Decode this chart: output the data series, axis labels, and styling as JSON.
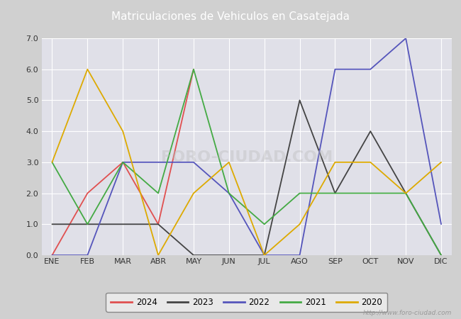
{
  "title": "Matriculaciones de Vehiculos en Casatejada",
  "months": [
    "ENE",
    "FEB",
    "MAR",
    "ABR",
    "MAY",
    "JUN",
    "JUL",
    "AGO",
    "SEP",
    "OCT",
    "NOV",
    "DIC"
  ],
  "series": {
    "2024": {
      "values": [
        0,
        2,
        3,
        1,
        6,
        null,
        null,
        null,
        null,
        null,
        null,
        null
      ],
      "color": "#e05050",
      "linewidth": 1.3
    },
    "2023": {
      "values": [
        1,
        1,
        1,
        1,
        0,
        0,
        0,
        5,
        2,
        4,
        2,
        0
      ],
      "color": "#444444",
      "linewidth": 1.3
    },
    "2022": {
      "values": [
        0,
        0,
        3,
        3,
        3,
        2,
        0,
        0,
        6,
        6,
        7,
        1
      ],
      "color": "#5555bb",
      "linewidth": 1.3
    },
    "2021": {
      "values": [
        3,
        1,
        3,
        2,
        6,
        2,
        1,
        2,
        2,
        2,
        2,
        0
      ],
      "color": "#44aa44",
      "linewidth": 1.3
    },
    "2020": {
      "values": [
        3,
        6,
        4,
        0,
        2,
        3,
        0,
        1,
        3,
        3,
        2,
        3
      ],
      "color": "#ddaa00",
      "linewidth": 1.3
    }
  },
  "ylim": [
    0,
    7.0
  ],
  "yticks": [
    0.0,
    1.0,
    2.0,
    3.0,
    4.0,
    5.0,
    6.0,
    7.0
  ],
  "fig_bg_color": "#d0d0d0",
  "plot_bg_color": "#e0e0e8",
  "title_bg_color": "#4477aa",
  "title_color": "#ffffff",
  "title_fontsize": 11,
  "grid_color": "#ffffff",
  "watermark": "http://www.foro-ciudad.com",
  "legend_years": [
    "2024",
    "2023",
    "2022",
    "2021",
    "2020"
  ],
  "tick_color": "#333333",
  "tick_fontsize": 8
}
